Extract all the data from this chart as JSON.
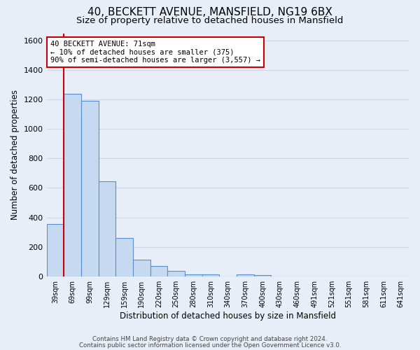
{
  "title": "40, BECKETT AVENUE, MANSFIELD, NG19 6BX",
  "subtitle": "Size of property relative to detached houses in Mansfield",
  "xlabel": "Distribution of detached houses by size in Mansfield",
  "ylabel": "Number of detached properties",
  "bar_labels": [
    "39sqm",
    "69sqm",
    "99sqm",
    "129sqm",
    "159sqm",
    "190sqm",
    "220sqm",
    "250sqm",
    "280sqm",
    "310sqm",
    "340sqm",
    "370sqm",
    "400sqm",
    "430sqm",
    "460sqm",
    "491sqm",
    "521sqm",
    "551sqm",
    "581sqm",
    "611sqm",
    "641sqm"
  ],
  "bar_values": [
    355,
    1240,
    1190,
    645,
    260,
    115,
    70,
    38,
    15,
    15,
    0,
    15,
    10,
    0,
    0,
    0,
    0,
    0,
    0,
    0,
    0
  ],
  "bar_color": "#c5d9f0",
  "bar_edge_color": "#5b8fc9",
  "vline_color": "#cc0000",
  "annotation_title": "40 BECKETT AVENUE: 71sqm",
  "annotation_line1": "← 10% of detached houses are smaller (375)",
  "annotation_line2": "90% of semi-detached houses are larger (3,557) →",
  "box_color": "#cc0000",
  "ylim": [
    0,
    1650
  ],
  "yticks": [
    0,
    200,
    400,
    600,
    800,
    1000,
    1200,
    1400,
    1600
  ],
  "footer1": "Contains HM Land Registry data © Crown copyright and database right 2024.",
  "footer2": "Contains public sector information licensed under the Open Government Licence v3.0.",
  "background_color": "#e8eef7",
  "grid_color": "#d0d8e8",
  "title_fontsize": 11,
  "subtitle_fontsize": 9.5
}
